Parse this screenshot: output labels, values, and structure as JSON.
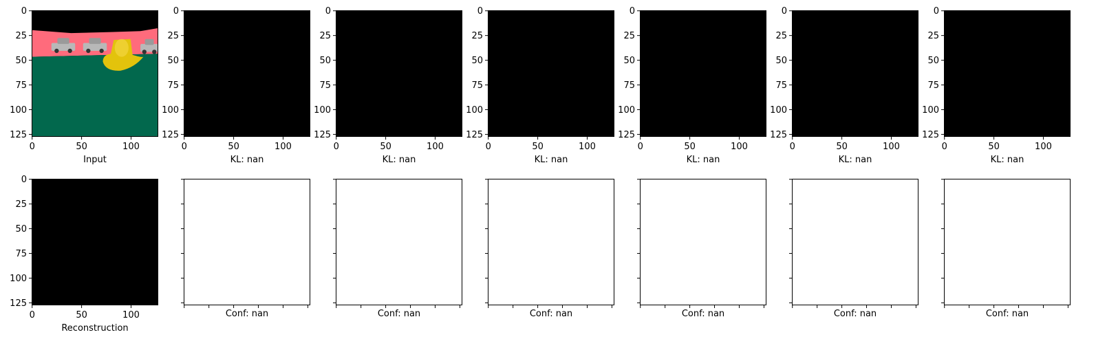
{
  "chart_data": {
    "type": "image-grid",
    "layout": {
      "rows": 2,
      "cols": 7
    },
    "axis_range": {
      "x": [
        0,
        128
      ],
      "y": [
        128,
        0
      ]
    },
    "tick_values": [
      0,
      25,
      50,
      75,
      100,
      125
    ],
    "x_tick_values": [
      0,
      50,
      100
    ],
    "colors": {
      "sky": "#ff6b7c",
      "ground": "#02684d",
      "object": "#e3c30c",
      "car": "#b8b8b8",
      "blank": "#000000",
      "empty_panel": "#ffffff"
    },
    "panels": [
      {
        "row": 0,
        "col": 0,
        "xlabel": "Input",
        "content": "scene",
        "ticks": true
      },
      {
        "row": 0,
        "col": 1,
        "xlabel": "KL: nan",
        "content": "black",
        "ticks": true
      },
      {
        "row": 0,
        "col": 2,
        "xlabel": "KL: nan",
        "content": "black",
        "ticks": true
      },
      {
        "row": 0,
        "col": 3,
        "xlabel": "KL: nan",
        "content": "black",
        "ticks": true
      },
      {
        "row": 0,
        "col": 4,
        "xlabel": "KL: nan",
        "content": "black",
        "ticks": true
      },
      {
        "row": 0,
        "col": 5,
        "xlabel": "KL: nan",
        "content": "black",
        "ticks": true
      },
      {
        "row": 0,
        "col": 6,
        "xlabel": "KL: nan",
        "content": "black",
        "ticks": true
      },
      {
        "row": 1,
        "col": 0,
        "xlabel": "Reconstruction",
        "content": "black",
        "ticks": true
      },
      {
        "row": 1,
        "col": 1,
        "xlabel": "Conf: nan",
        "content": "empty",
        "ticks": false
      },
      {
        "row": 1,
        "col": 2,
        "xlabel": "Conf: nan",
        "content": "empty",
        "ticks": false
      },
      {
        "row": 1,
        "col": 3,
        "xlabel": "Conf: nan",
        "content": "empty",
        "ticks": false
      },
      {
        "row": 1,
        "col": 4,
        "xlabel": "Conf: nan",
        "content": "empty",
        "ticks": false
      },
      {
        "row": 1,
        "col": 5,
        "xlabel": "Conf: nan",
        "content": "empty",
        "ticks": false
      },
      {
        "row": 1,
        "col": 6,
        "xlabel": "Conf: nan",
        "content": "empty",
        "ticks": false
      }
    ]
  }
}
